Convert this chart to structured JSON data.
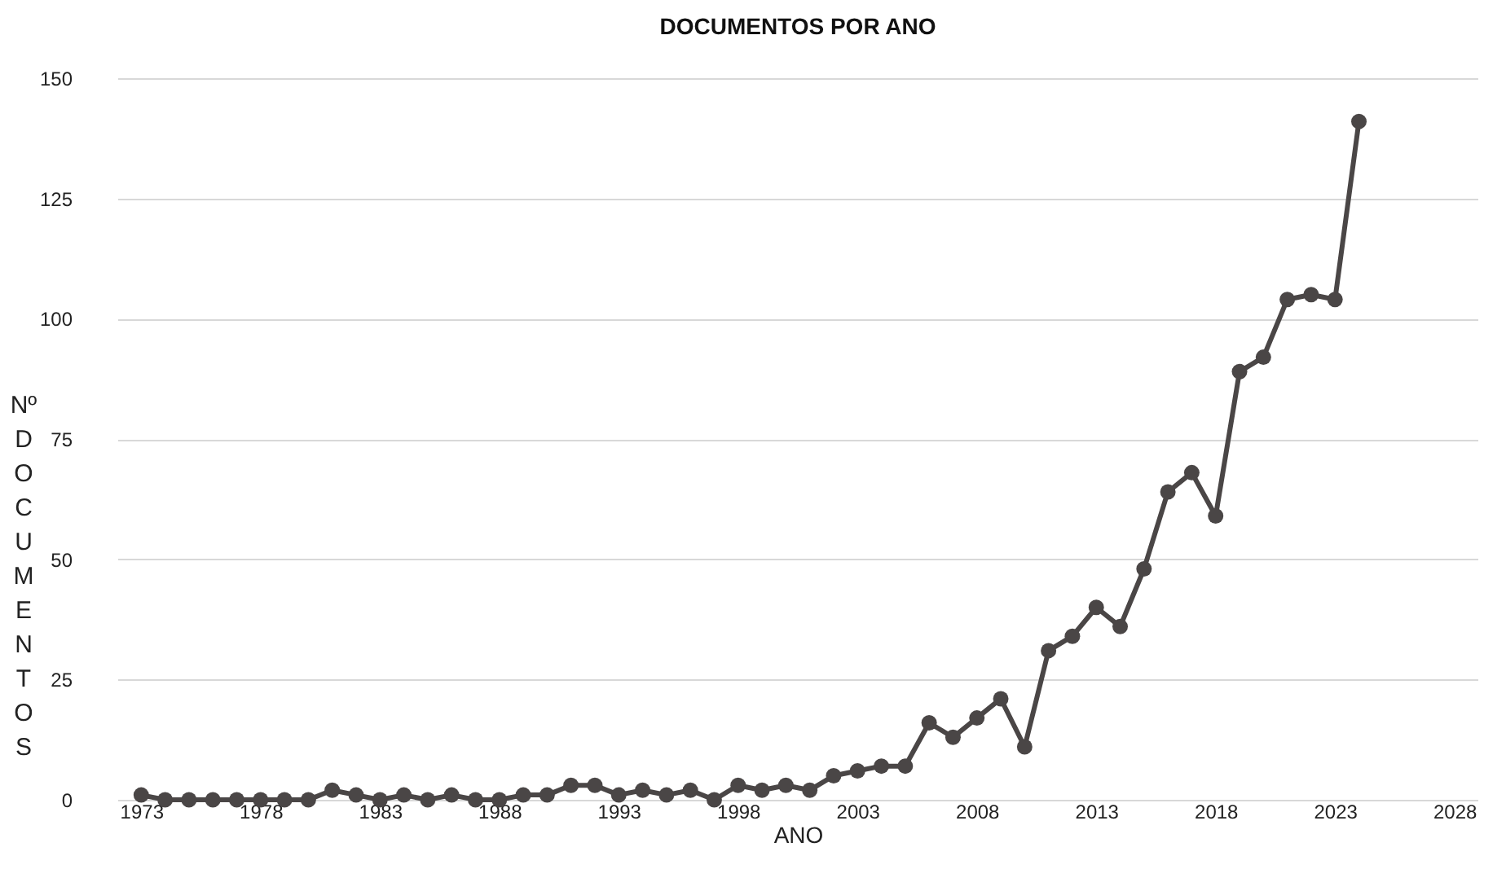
{
  "chart_data": {
    "type": "line",
    "title": "DOCUMENTOS POR ANO",
    "xlabel": "ANO",
    "ylabel": "Nº DOCUMENTOS",
    "x": [
      1973,
      1974,
      1975,
      1976,
      1977,
      1978,
      1979,
      1980,
      1981,
      1982,
      1983,
      1984,
      1985,
      1986,
      1987,
      1988,
      1989,
      1990,
      1991,
      1992,
      1993,
      1994,
      1995,
      1996,
      1997,
      1998,
      1999,
      2000,
      2001,
      2002,
      2003,
      2004,
      2005,
      2006,
      2007,
      2008,
      2009,
      2010,
      2011,
      2012,
      2013,
      2014,
      2015,
      2016,
      2017,
      2018,
      2019,
      2020,
      2021,
      2022,
      2023,
      2024
    ],
    "series": [
      {
        "color": "#4a4646",
        "values": [
          1,
          0,
          0,
          0,
          0,
          0,
          0,
          0,
          2,
          1,
          0,
          1,
          0,
          1,
          0,
          0,
          1,
          1,
          3,
          3,
          1,
          2,
          1,
          2,
          0,
          3,
          2,
          3,
          2,
          5,
          6,
          7,
          7,
          16,
          13,
          17,
          21,
          11,
          31,
          34,
          40,
          36,
          48,
          64,
          68,
          59,
          89,
          92,
          104,
          105,
          104,
          141
        ]
      }
    ],
    "xlim": [
      1972,
      2029
    ],
    "xticks": [
      1973,
      1978,
      1983,
      1988,
      1993,
      1998,
      2003,
      2008,
      2013,
      2018,
      2023,
      2028
    ],
    "ylim": [
      0,
      150
    ],
    "yticks": [
      0,
      25,
      50,
      75,
      100,
      125,
      150
    ],
    "grid": "y",
    "marker": "circle",
    "line_style": "solid"
  }
}
